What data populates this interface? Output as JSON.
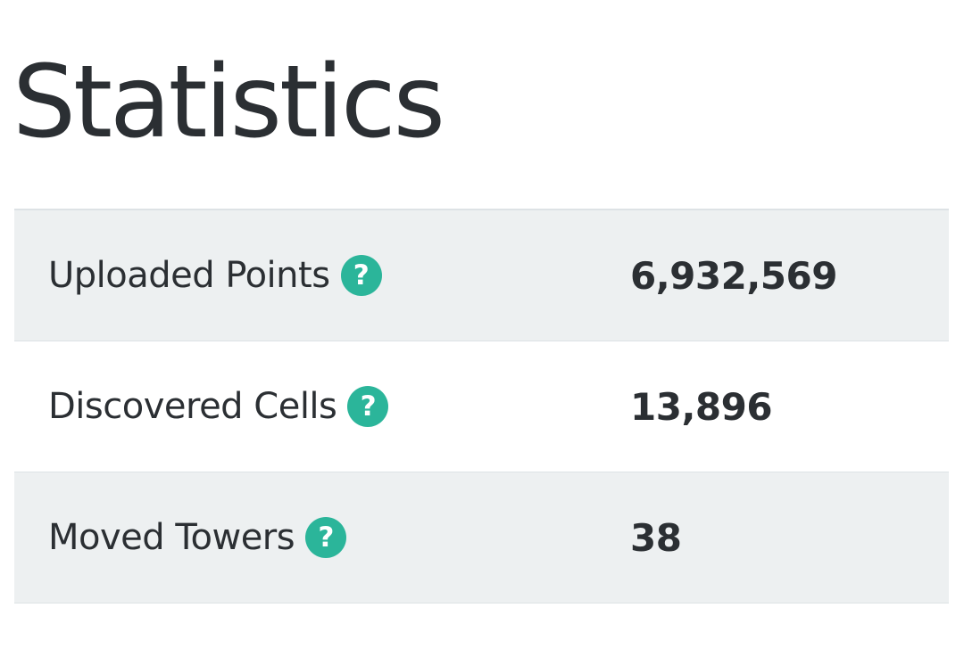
{
  "page": {
    "title": "Statistics"
  },
  "stats": {
    "rows": [
      {
        "label": "Uploaded Points",
        "value": "6,932,569",
        "help_icon": "question-circle-icon"
      },
      {
        "label": "Discovered Cells",
        "value": "13,896",
        "help_icon": "question-circle-icon"
      },
      {
        "label": "Moved Towers",
        "value": "38",
        "help_icon": "question-circle-icon"
      }
    ],
    "help_glyph": "?"
  },
  "colors": {
    "accent": "#2bb59a",
    "text": "#2b2f33",
    "row_shade": "#edf0f1",
    "divider": "#dde2e5"
  }
}
